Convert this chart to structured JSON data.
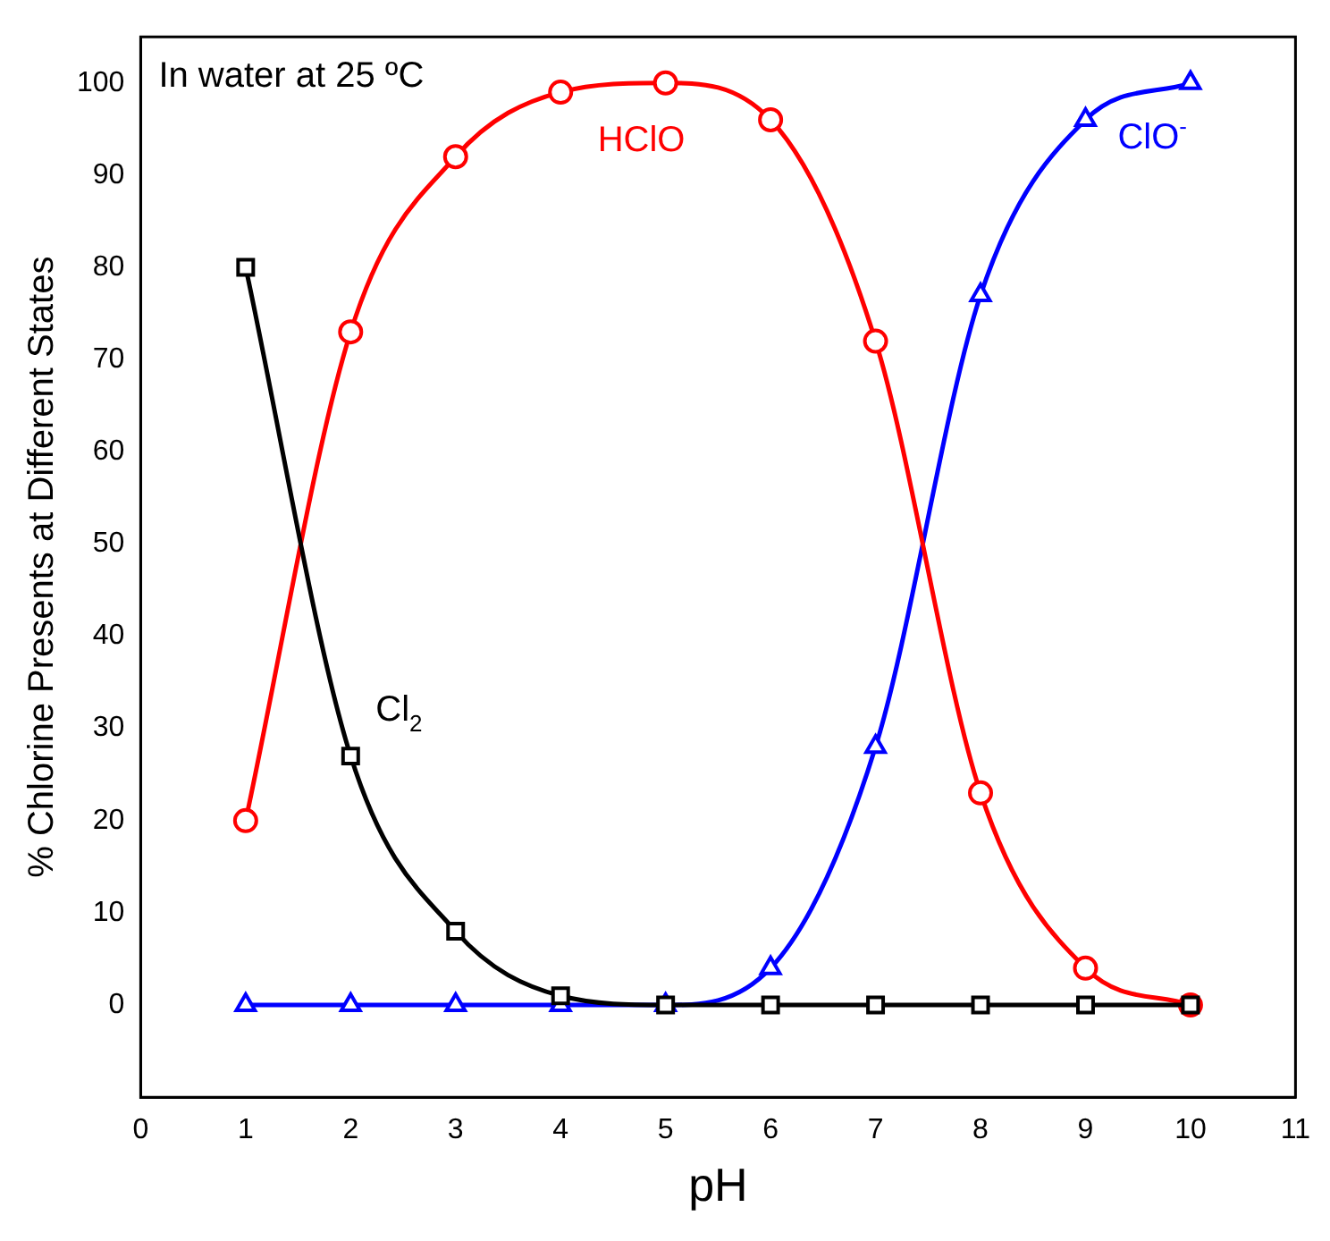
{
  "chart_data": {
    "type": "line",
    "xlabel": "pH",
    "ylabel": "% Chlorine Presents at Different States",
    "annotations": [
      "In water at 25 ºC"
    ],
    "x": [
      1,
      2,
      3,
      4,
      5,
      6,
      7,
      8,
      9,
      10
    ],
    "series": [
      {
        "name": "Cl$_{2}$",
        "color": "#000000",
        "marker": "square",
        "values": [
          80,
          27,
          8,
          1,
          0,
          0,
          0,
          0,
          0,
          0
        ]
      },
      {
        "name": "HClO",
        "color": "#ff0000",
        "marker": "circle",
        "values": [
          20,
          73,
          92,
          99,
          100,
          96,
          72,
          23,
          4,
          0
        ]
      },
      {
        "name": "ClO$^{-}$",
        "color": "#0000ff",
        "marker": "triangle",
        "values": [
          0,
          0,
          0,
          0,
          0,
          4,
          28,
          77,
          96,
          100
        ]
      }
    ],
    "xlim": [
      0,
      11
    ],
    "xticks": [
      0,
      1,
      2,
      3,
      4,
      5,
      6,
      7,
      8,
      9,
      10,
      11
    ],
    "ylim": [
      -10,
      105
    ],
    "yticks": [
      0,
      10,
      20,
      30,
      40,
      50,
      60,
      70,
      80,
      90,
      100
    ],
    "grid": false,
    "legend": false,
    "line_style": "solid"
  }
}
